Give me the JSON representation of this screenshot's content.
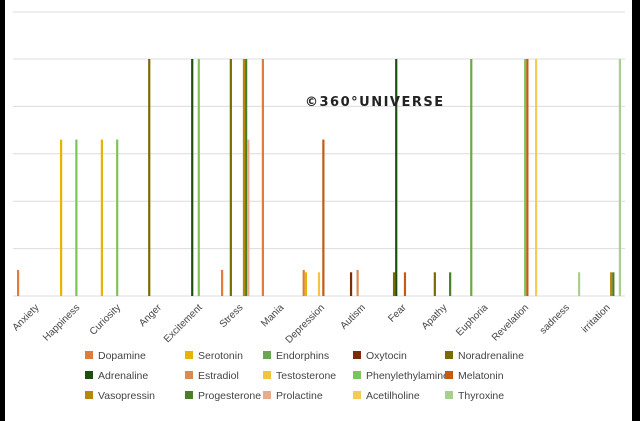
{
  "watermark": "©360°UNIVERSE",
  "chart_data": {
    "type": "bar",
    "title": "",
    "xlabel": "",
    "ylabel": "",
    "ylim": [
      0,
      5
    ],
    "grid": true,
    "legend_position": "bottom",
    "categories": [
      "Anxiety",
      "Happiness",
      "Curiosity",
      "Anger",
      "Excitement",
      "Stress",
      "Mania",
      "Depression",
      "Autism",
      "Fear",
      "Apathy",
      "Euphoria",
      "Revelation",
      "sadness",
      "irritation"
    ],
    "series": [
      {
        "name": "Dopamine",
        "color": "#e07b39",
        "values": [
          0.55,
          0,
          0,
          0,
          0,
          0.55,
          5,
          0.55,
          0,
          0,
          0,
          0,
          0,
          0,
          0
        ]
      },
      {
        "name": "Serotonin",
        "color": "#e8b400",
        "values": [
          0,
          3.3,
          3.3,
          0,
          0,
          0,
          0,
          0.5,
          0,
          0,
          0,
          0,
          0,
          0,
          0
        ]
      },
      {
        "name": "Endorphins",
        "color": "#6aa84f",
        "values": [
          0,
          0,
          0,
          0,
          0,
          0,
          0,
          0,
          0,
          0,
          0,
          5,
          0,
          0,
          0
        ]
      },
      {
        "name": "Oxytocin",
        "color": "#7b2d0a",
        "values": [
          0,
          0,
          0,
          0,
          0,
          0,
          0,
          0,
          0.5,
          0,
          0,
          0,
          0,
          0,
          0
        ]
      },
      {
        "name": "Noradrenaline",
        "color": "#7a6a00",
        "values": [
          0,
          0,
          0,
          5,
          0,
          5,
          0,
          0,
          0,
          0.5,
          0.5,
          0,
          0,
          0,
          0
        ]
      },
      {
        "name": "Adrenaline",
        "color": "#1e4d12",
        "values": [
          0,
          0,
          0,
          0,
          5,
          0,
          0,
          0,
          0,
          5,
          0,
          0,
          0,
          0,
          0
        ]
      },
      {
        "name": "Estradiol",
        "color": "#d98c52",
        "values": [
          0,
          0,
          0,
          0,
          0,
          0,
          0,
          0,
          0.55,
          0,
          0,
          0,
          0,
          0,
          0
        ]
      },
      {
        "name": "Testosterone",
        "color": "#f2c53d",
        "values": [
          0,
          0,
          0,
          0,
          0,
          0,
          0,
          0.5,
          0,
          0,
          0,
          0,
          0,
          0,
          0
        ]
      },
      {
        "name": "Phenylethylamine",
        "color": "#7cc45a",
        "values": [
          0,
          3.3,
          3.3,
          0,
          5,
          0,
          0,
          0,
          0,
          0,
          0,
          0,
          5,
          0,
          0
        ]
      },
      {
        "name": "Melatonin",
        "color": "#c55a11",
        "values": [
          0,
          0,
          0,
          0,
          0,
          0,
          0,
          3.3,
          0,
          0.5,
          0,
          0,
          5,
          0,
          0
        ]
      },
      {
        "name": "Vasopressin",
        "color": "#b8860b",
        "values": [
          0,
          0,
          0,
          0,
          0,
          5,
          0,
          0,
          0,
          0,
          0,
          0,
          0,
          0,
          0.5
        ]
      },
      {
        "name": "Progesterone",
        "color": "#4a7f2a",
        "values": [
          0,
          0,
          0,
          0,
          0,
          5,
          0,
          0,
          0,
          0,
          0.5,
          0,
          0,
          0,
          0.5
        ]
      },
      {
        "name": "Prolactine",
        "color": "#ebab8a",
        "values": [
          0,
          0,
          0,
          0,
          0,
          3.3,
          0,
          0,
          0,
          0,
          0,
          0,
          0,
          0,
          0
        ]
      },
      {
        "name": "Acetilholine",
        "color": "#f7ca55",
        "values": [
          0,
          0,
          0,
          0,
          0,
          0,
          0,
          0,
          0,
          0,
          0,
          0,
          5,
          0,
          0
        ]
      },
      {
        "name": "Thyroxine",
        "color": "#a8d08d",
        "values": [
          0,
          0,
          0,
          0,
          0,
          0,
          0,
          0,
          0,
          0,
          0,
          0,
          0,
          0.5,
          5
        ]
      }
    ]
  }
}
